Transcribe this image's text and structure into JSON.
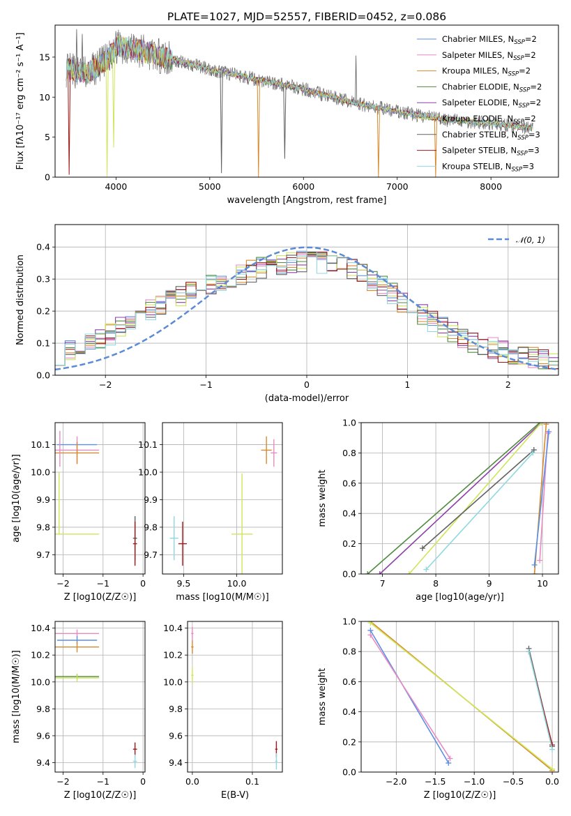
{
  "figure": {
    "title": "PLATE=1027, MJD=52557, FIBERID=0452, z=0.086"
  },
  "colors": {
    "Chabrier MILES": "#5b8ee5",
    "Salpeter MILES": "#e88ac2",
    "Kroupa MILES": "#d68a2e",
    "Chabrier ELODIE": "#4f8a3f",
    "Salpeter ELODIE": "#8e3fa8",
    "Kroupa ELODIE": "#cde65a",
    "Chabrier STELIB": "#606060",
    "Salpeter STELIB": "#a01818",
    "Kroupa STELIB": "#8fd8e0",
    "gauss": "#5b8ad6"
  },
  "chart_data": [
    {
      "id": "spectrum",
      "type": "line",
      "title": "PLATE=1027, MJD=52557, FIBERID=0452, z=0.086",
      "xlabel": "wavelength [Angstrom, rest frame]",
      "ylabel": "Flux [fλ10⁻¹⁷ erg cm⁻² s⁻¹ A⁻¹]",
      "xlim": [
        3350,
        8720
      ],
      "ylim": [
        0,
        19
      ],
      "xticks": [
        4000,
        5000,
        6000,
        7000,
        8000
      ],
      "yticks": [
        0,
        5,
        10,
        15
      ],
      "legend_position": "top-right",
      "legend": [
        "Chabrier MILES, NSSP=2",
        "Salpeter MILES, NSSP=2",
        "Kroupa MILES, NSSP=2",
        "Chabrier ELODIE, NSSP=2",
        "Salpeter ELODIE, NSSP=2",
        "Kroupa ELODIE, NSSP=2",
        "Chabrier STELIB, NSSP=3",
        "Salpeter STELIB, NSSP=3",
        "Kroupa STELIB, NSSP=3"
      ],
      "continuum": [
        [
          3500,
          13.4
        ],
        [
          3700,
          13.0
        ],
        [
          3900,
          14.6
        ],
        [
          4000,
          16.3
        ],
        [
          4200,
          16.0
        ],
        [
          4500,
          15.0
        ],
        [
          5000,
          13.5
        ],
        [
          5500,
          12.2
        ],
        [
          6000,
          11.0
        ],
        [
          6500,
          9.4
        ],
        [
          7000,
          8.2
        ],
        [
          7500,
          7.2
        ],
        [
          8000,
          6.7
        ],
        [
          8450,
          6.1
        ]
      ],
      "dips": [
        {
          "series": "Salpeter STELIB",
          "x": 3500,
          "y": 0.3
        },
        {
          "series": "Kroupa ELODIE",
          "x": 3905,
          "y": 0.1
        },
        {
          "series": "Kroupa ELODIE",
          "x": 3975,
          "y": 3.7
        },
        {
          "series": "Chabrier STELIB",
          "x": 5125,
          "y": 0.5
        },
        {
          "series": "Kroupa MILES",
          "x": 5520,
          "y": 0.0
        },
        {
          "series": "Chabrier STELIB",
          "x": 5800,
          "y": 2.3
        },
        {
          "series": "Kroupa MILES",
          "x": 6800,
          "y": 0.0
        },
        {
          "series": "Kroupa MILES",
          "x": 7410,
          "y": 0.0
        }
      ],
      "spikes": [
        {
          "series": "Chabrier STELIB",
          "x": 3580,
          "y": 18.5
        },
        {
          "series": "Chabrier STELIB",
          "x": 3640,
          "y": 17.9
        },
        {
          "series": "Chabrier STELIB",
          "x": 6560,
          "y": 15.2
        }
      ]
    },
    {
      "id": "residuals",
      "type": "line",
      "xlabel": "(data-model)/error",
      "ylabel": "Normed distribution",
      "xlim": [
        -2.5,
        2.5
      ],
      "ylim": [
        0,
        0.47
      ],
      "xticks": [
        -2,
        -1,
        0,
        1,
        2
      ],
      "yticks": [
        0.0,
        0.1,
        0.2,
        0.3,
        0.4
      ],
      "legend": [
        "𝒩(0, 1)"
      ],
      "legend_position": "top-right",
      "bin_width": 0.1,
      "envelope": [
        [
          -2.5,
          0.06
        ],
        [
          -2.0,
          0.12
        ],
        [
          -1.5,
          0.21
        ],
        [
          -1.0,
          0.28
        ],
        [
          -0.5,
          0.33
        ],
        [
          0.0,
          0.36
        ],
        [
          0.5,
          0.33
        ],
        [
          1.0,
          0.22
        ],
        [
          1.5,
          0.12
        ],
        [
          2.0,
          0.07
        ],
        [
          2.5,
          0.035
        ]
      ],
      "gaussian": {
        "mean": 0,
        "sigma": 1
      }
    },
    {
      "id": "age-vs-z",
      "type": "scatter",
      "xlabel": "Z [log10(Z/Z☉)]",
      "ylabel": "age  [log10(age/yr)]",
      "xlim": [
        -2.2,
        0.05
      ],
      "ylim": [
        9.63,
        10.18
      ],
      "xticks": [
        -2,
        -1,
        0
      ],
      "yticks": [
        9.7,
        9.8,
        9.9,
        10.0,
        10.1
      ],
      "points": [
        {
          "series": "Chabrier MILES",
          "x": -1.65,
          "y": 10.1,
          "xerr": 0.5,
          "yerr": 0.0
        },
        {
          "series": "Salpeter MILES",
          "x": -1.65,
          "y": 10.08,
          "xerr": 0.55,
          "yerr": 0.05
        },
        {
          "series": "Kroupa MILES",
          "x": -1.65,
          "y": 10.07,
          "xerr": 0.55,
          "yerr": 0.04
        },
        {
          "series": "Kroupa ELODIE",
          "x": -1.65,
          "y": 9.775,
          "xerr": 0.55,
          "yerr": 0.0
        },
        {
          "series": "Chabrier STELIB",
          "x": -0.2,
          "y": 9.76,
          "xerr": 0.05,
          "yerr": 0.08
        },
        {
          "series": "Salpeter STELIB",
          "x": -0.2,
          "y": 9.74,
          "xerr": 0.05,
          "yerr": 0.08
        }
      ]
    },
    {
      "id": "age-vs-mass",
      "type": "scatter",
      "xlabel": "mass [log10(M/M☉)]",
      "ylabel": "",
      "xlim": [
        9.3,
        10.43
      ],
      "ylim": [
        9.63,
        10.18
      ],
      "xticks": [
        9.5,
        10.0
      ],
      "yticks": [
        9.7,
        9.8,
        9.9,
        10.0,
        10.1
      ],
      "points": [
        {
          "series": "Kroupa STELIB",
          "x": 9.41,
          "y": 9.76,
          "xerr": 0.04,
          "yerr": 0.08
        },
        {
          "series": "Salpeter STELIB",
          "x": 9.49,
          "y": 9.74,
          "xerr": 0.04,
          "yerr": 0.08
        },
        {
          "series": "Kroupa ELODIE",
          "x": 10.05,
          "y": 9.775,
          "xerr": 0.1,
          "yerr": 0.22
        },
        {
          "series": "Kroupa MILES",
          "x": 10.28,
          "y": 10.08,
          "xerr": 0.05,
          "yerr": 0.05
        },
        {
          "series": "Salpeter MILES",
          "x": 10.35,
          "y": 10.07,
          "xerr": 0.03,
          "yerr": 0.05
        }
      ]
    },
    {
      "id": "weight-vs-age",
      "type": "line",
      "xlabel": "age  [log10(age/yr)]",
      "ylabel": "mass weight",
      "xlim": [
        6.6,
        10.3
      ],
      "ylim": [
        0,
        1
      ],
      "xticks": [
        7,
        8,
        9,
        10
      ],
      "yticks": [
        0.0,
        0.2,
        0.4,
        0.6,
        0.8,
        1.0
      ],
      "lines": [
        {
          "series": "Chabrier ELODIE",
          "x": [
            6.72,
            9.95
          ],
          "y": [
            0.0,
            1.0
          ]
        },
        {
          "series": "Salpeter ELODIE",
          "x": [
            6.95,
            9.98
          ],
          "y": [
            0.0,
            1.0
          ]
        },
        {
          "series": "Kroupa ELODIE",
          "x": [
            7.5,
            9.98
          ],
          "y": [
            0.0,
            1.0
          ]
        },
        {
          "series": "Chabrier STELIB",
          "x": [
            7.75,
            9.84
          ],
          "y": [
            0.17,
            0.82
          ]
        },
        {
          "series": "Kroupa STELIB",
          "x": [
            7.82,
            9.82
          ],
          "y": [
            0.03,
            0.8
          ]
        },
        {
          "series": "Kroupa MILES",
          "x": [
            9.85,
            10.07
          ],
          "y": [
            0.0,
            0.99
          ]
        },
        {
          "series": "Salpeter MILES",
          "x": [
            9.95,
            10.1
          ],
          "y": [
            0.09,
            0.93
          ]
        },
        {
          "series": "Chabrier MILES",
          "x": [
            9.85,
            10.12
          ],
          "y": [
            0.06,
            0.94
          ]
        }
      ]
    },
    {
      "id": "mass-vs-z",
      "type": "scatter",
      "xlabel": "Z [log10(Z/Z☉)]",
      "ylabel": "mass [log10(M/M☉)]",
      "xlim": [
        -2.2,
        0.05
      ],
      "ylim": [
        9.33,
        10.45
      ],
      "xticks": [
        -2,
        -1,
        0
      ],
      "yticks": [
        9.4,
        9.6,
        9.8,
        10.0,
        10.2,
        10.4
      ],
      "points": [
        {
          "series": "Salpeter MILES",
          "x": -1.65,
          "y": 10.36,
          "xerr": 0.55,
          "yerr": 0.03
        },
        {
          "series": "Chabrier MILES",
          "x": -1.65,
          "y": 10.31,
          "xerr": 0.5,
          "yerr": 0.03
        },
        {
          "series": "Kroupa MILES",
          "x": -1.65,
          "y": 10.26,
          "xerr": 0.55,
          "yerr": 0.04
        },
        {
          "series": "Chabrier ELODIE",
          "x": -1.65,
          "y": 10.04,
          "xerr": 0.55,
          "yerr": 0.02
        },
        {
          "series": "Kroupa ELODIE",
          "x": -1.65,
          "y": 10.03,
          "xerr": 0.55,
          "yerr": 0.03
        },
        {
          "series": "Salpeter STELIB",
          "x": -0.2,
          "y": 9.5,
          "xerr": 0.05,
          "yerr": 0.05
        },
        {
          "series": "Kroupa STELIB",
          "x": -0.2,
          "y": 9.41,
          "xerr": 0.05,
          "yerr": 0.05
        }
      ]
    },
    {
      "id": "mass-vs-ebv",
      "type": "scatter",
      "xlabel": "E(B-V)",
      "ylabel": "",
      "xlim": [
        -0.008,
        0.15
      ],
      "ylim": [
        9.33,
        10.45
      ],
      "xticks": [
        0.0,
        0.1
      ],
      "yticks": [
        9.4,
        9.6,
        9.8,
        10.0,
        10.2,
        10.4
      ],
      "points": [
        {
          "series": "Salpeter MILES",
          "x": 0.0,
          "y": 10.36,
          "xerr": 0.002,
          "yerr": 0.05
        },
        {
          "series": "Kroupa MILES",
          "x": 0.0,
          "y": 10.26,
          "xerr": 0.002,
          "yerr": 0.05
        },
        {
          "series": "Kroupa ELODIE",
          "x": 0.0,
          "y": 10.05,
          "xerr": 0.002,
          "yerr": 0.06
        },
        {
          "series": "Salpeter STELIB",
          "x": 0.14,
          "y": 9.5,
          "xerr": 0.002,
          "yerr": 0.06
        },
        {
          "series": "Kroupa STELIB",
          "x": 0.14,
          "y": 9.41,
          "xerr": 0.002,
          "yerr": 0.06
        }
      ]
    },
    {
      "id": "weight-vs-z",
      "type": "line",
      "xlabel": "Z [log10(Z/Z☉)]",
      "ylabel": "mass weight",
      "xlim": [
        -2.45,
        0.08
      ],
      "ylim": [
        0,
        1
      ],
      "xticks": [
        -2.0,
        -1.5,
        -1.0,
        -0.5,
        0.0
      ],
      "yticks": [
        0.0,
        0.2,
        0.4,
        0.6,
        0.8,
        1.0
      ],
      "lines": [
        {
          "series": "Chabrier MILES",
          "x": [
            -2.33,
            -1.33
          ],
          "y": [
            0.94,
            0.06
          ]
        },
        {
          "series": "Salpeter MILES",
          "x": [
            -2.33,
            -1.31
          ],
          "y": [
            0.91,
            0.09
          ]
        },
        {
          "series": "Kroupa MILES",
          "x": [
            -2.33,
            0.0
          ],
          "y": [
            1.0,
            0.01
          ]
        },
        {
          "series": "Kroupa ELODIE",
          "x": [
            -2.33,
            0.0
          ],
          "y": [
            0.99,
            0.02
          ]
        },
        {
          "series": "Chabrier STELIB",
          "x": [
            -0.3,
            0.0
          ],
          "y": [
            0.82,
            0.17
          ]
        },
        {
          "series": "Salpeter STELIB",
          "x": [
            -0.3,
            0.0
          ],
          "y": [
            0.8,
            0.18
          ]
        },
        {
          "series": "Kroupa STELIB",
          "x": [
            -0.3,
            0.0
          ],
          "y": [
            0.8,
            0.15
          ]
        }
      ]
    }
  ]
}
